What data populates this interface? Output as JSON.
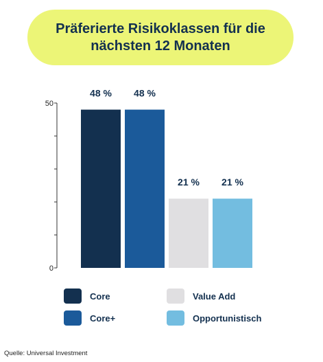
{
  "title": "Präferierte Risikoklassen für die\nnächsten 12 Monaten",
  "source": "Quelle: Universal Investment",
  "chart_data": {
    "type": "bar",
    "categories": [
      "Core",
      "Core+",
      "Value Add",
      "Opportunistisch"
    ],
    "values": [
      48,
      48,
      21,
      21
    ],
    "data_labels": [
      "48 %",
      "48 %",
      "21 %",
      "21 %"
    ],
    "colors": [
      "#13304f",
      "#1b5a9a",
      "#e0dfe1",
      "#73bde0"
    ],
    "ylim": [
      0,
      50
    ],
    "yticks": [
      0,
      50
    ],
    "grid": false,
    "legend_position": "bottom",
    "title": "Präferierte Risikoklassen für die nächsten 12 Monaten",
    "xlabel": "",
    "ylabel": ""
  },
  "legend": [
    {
      "label": "Core",
      "color": "#13304f"
    },
    {
      "label": "Core+",
      "color": "#1b5a9a"
    },
    {
      "label": "Value Add",
      "color": "#e0dfe1"
    },
    {
      "label": "Opportunistisch",
      "color": "#73bde0"
    }
  ]
}
